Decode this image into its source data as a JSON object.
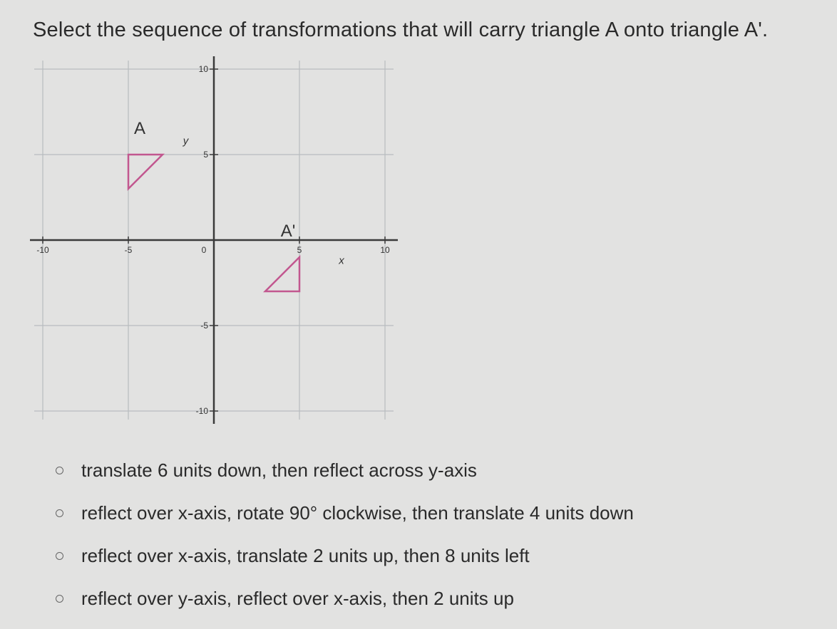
{
  "question": "Select the sequence of transformations that will carry triangle A onto triangle A'.",
  "graph": {
    "x_label": "x",
    "y_label": "y",
    "xlim": [
      -10.5,
      10.5
    ],
    "ylim": [
      -10.5,
      10.5
    ],
    "xticks": [
      -10,
      -5,
      0,
      5,
      10
    ],
    "yticks": [
      -10,
      -5,
      5,
      10
    ],
    "triangles": [
      {
        "label": "A",
        "color": "#c2578f",
        "points": [
          [
            -5,
            5
          ],
          [
            -3,
            5
          ],
          [
            -5,
            3
          ]
        ]
      },
      {
        "label": "A'",
        "color": "#c2578f",
        "points": [
          [
            5,
            -1
          ],
          [
            5,
            -3
          ],
          [
            3,
            -3
          ]
        ]
      }
    ]
  },
  "options": [
    "translate 6 units down, then reflect across y-axis",
    "reflect over x-axis, rotate 90° clockwise, then translate 4 units down",
    "reflect over x-axis, translate 2 units up, then 8 units left",
    "reflect over y-axis, reflect over x-axis, then 2 units up"
  ]
}
